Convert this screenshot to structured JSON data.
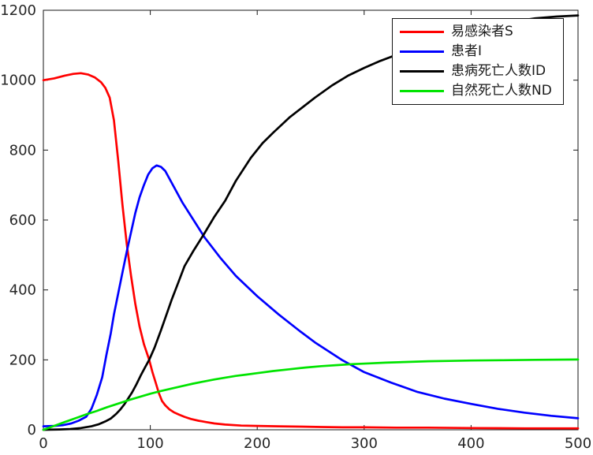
{
  "figure": {
    "background": "#ffffff",
    "axis_color": "#151515",
    "tick_label_color": "#262626"
  },
  "chart_data": {
    "type": "line",
    "title": "",
    "xlabel": "",
    "ylabel": "",
    "xlim": [
      0,
      500
    ],
    "ylim": [
      0,
      1200
    ],
    "xticks": [
      "0",
      "100",
      "200",
      "300",
      "400",
      "500"
    ],
    "xtick_values": [
      0,
      100,
      200,
      300,
      400,
      500
    ],
    "yticks": [
      "0",
      "200",
      "400",
      "600",
      "800",
      "1000",
      "1200"
    ],
    "ytick_values": [
      0,
      200,
      400,
      600,
      800,
      1000,
      1200
    ],
    "grid": false,
    "box": true,
    "legend_position": "top-right",
    "series": [
      {
        "key": "susceptible-s",
        "name": "易感染者S",
        "color": "#ff0000",
        "points": [
          [
            0,
            1000
          ],
          [
            10,
            1005
          ],
          [
            20,
            1013
          ],
          [
            28,
            1018
          ],
          [
            35,
            1020
          ],
          [
            42,
            1016
          ],
          [
            48,
            1008
          ],
          [
            54,
            994
          ],
          [
            58,
            978
          ],
          [
            62,
            950
          ],
          [
            66,
            885
          ],
          [
            70,
            770
          ],
          [
            74,
            643
          ],
          [
            78,
            530
          ],
          [
            82,
            440
          ],
          [
            86,
            360
          ],
          [
            90,
            295
          ],
          [
            94,
            245
          ],
          [
            99,
            200
          ],
          [
            102,
            165
          ],
          [
            105,
            135
          ],
          [
            108,
            105
          ],
          [
            111,
            82
          ],
          [
            114,
            70
          ],
          [
            118,
            58
          ],
          [
            122,
            50
          ],
          [
            127,
            43
          ],
          [
            132,
            37
          ],
          [
            138,
            31
          ],
          [
            145,
            26
          ],
          [
            152,
            22
          ],
          [
            160,
            18
          ],
          [
            170,
            15
          ],
          [
            185,
            12
          ],
          [
            200,
            11
          ],
          [
            220,
            10
          ],
          [
            240,
            9
          ],
          [
            260,
            8
          ],
          [
            280,
            7
          ],
          [
            300,
            7
          ],
          [
            330,
            6
          ],
          [
            360,
            6
          ],
          [
            400,
            5
          ],
          [
            450,
            4
          ],
          [
            500,
            4
          ]
        ]
      },
      {
        "key": "infected-i",
        "name": "患者I",
        "color": "#0000ff",
        "points": [
          [
            0,
            10
          ],
          [
            10,
            11
          ],
          [
            18,
            13
          ],
          [
            26,
            18
          ],
          [
            33,
            26
          ],
          [
            40,
            37
          ],
          [
            45,
            60
          ],
          [
            50,
            100
          ],
          [
            55,
            150
          ],
          [
            59,
            215
          ],
          [
            63,
            275
          ],
          [
            66,
            330
          ],
          [
            70,
            390
          ],
          [
            74,
            450
          ],
          [
            78,
            510
          ],
          [
            82,
            565
          ],
          [
            86,
            620
          ],
          [
            90,
            665
          ],
          [
            94,
            700
          ],
          [
            98,
            730
          ],
          [
            102,
            748
          ],
          [
            106,
            756
          ],
          [
            110,
            752
          ],
          [
            114,
            740
          ],
          [
            130,
            650
          ],
          [
            151,
            549
          ],
          [
            166,
            490
          ],
          [
            180,
            440
          ],
          [
            200,
            382
          ],
          [
            220,
            330
          ],
          [
            240,
            282
          ],
          [
            254,
            250
          ],
          [
            279,
            200
          ],
          [
            300,
            165
          ],
          [
            325,
            135
          ],
          [
            350,
            108
          ],
          [
            375,
            89
          ],
          [
            400,
            74
          ],
          [
            425,
            60
          ],
          [
            450,
            49
          ],
          [
            475,
            40
          ],
          [
            500,
            33
          ]
        ]
      },
      {
        "key": "disease-deaths-id",
        "name": "患病死亡人数ID",
        "color": "#000000",
        "points": [
          [
            0,
            0
          ],
          [
            15,
            1
          ],
          [
            25,
            2
          ],
          [
            35,
            5
          ],
          [
            45,
            10
          ],
          [
            52,
            16
          ],
          [
            58,
            24
          ],
          [
            63,
            32
          ],
          [
            68,
            45
          ],
          [
            72,
            58
          ],
          [
            76,
            74
          ],
          [
            79,
            88
          ],
          [
            83,
            107
          ],
          [
            87,
            130
          ],
          [
            91,
            155
          ],
          [
            95,
            178
          ],
          [
            99,
            200
          ],
          [
            104,
            235
          ],
          [
            110,
            285
          ],
          [
            115,
            328
          ],
          [
            120,
            372
          ],
          [
            126,
            420
          ],
          [
            132,
            468
          ],
          [
            140,
            510
          ],
          [
            151,
            564
          ],
          [
            160,
            610
          ],
          [
            170,
            655
          ],
          [
            180,
            712
          ],
          [
            194,
            778
          ],
          [
            205,
            820
          ],
          [
            215,
            850
          ],
          [
            230,
            893
          ],
          [
            254,
            950
          ],
          [
            270,
            985
          ],
          [
            285,
            1013
          ],
          [
            300,
            1035
          ],
          [
            315,
            1055
          ],
          [
            328,
            1070
          ],
          [
            345,
            1090
          ],
          [
            365,
            1110
          ],
          [
            385,
            1128
          ],
          [
            405,
            1143
          ],
          [
            425,
            1155
          ],
          [
            445,
            1170
          ],
          [
            460,
            1177
          ],
          [
            480,
            1182
          ],
          [
            500,
            1185
          ]
        ]
      },
      {
        "key": "natural-deaths-nd",
        "name": "自然死亡人数ND",
        "color": "#00e400",
        "points": [
          [
            0,
            0
          ],
          [
            10,
            11
          ],
          [
            20,
            22
          ],
          [
            30,
            33
          ],
          [
            40,
            44
          ],
          [
            50,
            54
          ],
          [
            60,
            65
          ],
          [
            70,
            75
          ],
          [
            80,
            85
          ],
          [
            90,
            94
          ],
          [
            100,
            103
          ],
          [
            110,
            111
          ],
          [
            120,
            118
          ],
          [
            130,
            125
          ],
          [
            140,
            132
          ],
          [
            150,
            138
          ],
          [
            160,
            144
          ],
          [
            170,
            149
          ],
          [
            180,
            154
          ],
          [
            190,
            158
          ],
          [
            200,
            162
          ],
          [
            215,
            168
          ],
          [
            230,
            173
          ],
          [
            245,
            178
          ],
          [
            260,
            182
          ],
          [
            275,
            185
          ],
          [
            290,
            188
          ],
          [
            305,
            190
          ],
          [
            320,
            192
          ],
          [
            340,
            194
          ],
          [
            360,
            196
          ],
          [
            380,
            197
          ],
          [
            400,
            198
          ],
          [
            430,
            199
          ],
          [
            460,
            200
          ],
          [
            500,
            201
          ]
        ]
      }
    ]
  },
  "legend": {
    "border_color": "#151515",
    "background": "#ffffff"
  }
}
